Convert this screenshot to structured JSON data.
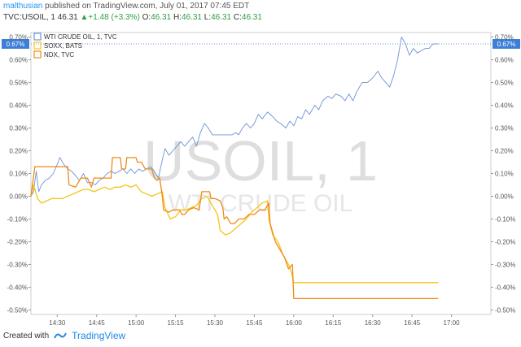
{
  "header": {
    "user": "malthusian",
    "published": " published on TradingView.com, July 01, 2017 07:45 EDT",
    "symbol": "TVC:USOIL, 1",
    "last": "46.31",
    "change_arrow": "▲",
    "change": "+1.48 (+3.3%)",
    "open_label": "O:",
    "open": "46.31",
    "high_label": "H:",
    "high": "46.31",
    "low_label": "L:",
    "low": "46.31",
    "close_label": "C:",
    "close": "46.31"
  },
  "footer": {
    "created_with": "Created with",
    "brand": "TradingView"
  },
  "watermark": {
    "symbol": "USOIL, 1",
    "name": "WTI CRUDE OIL"
  },
  "colors": {
    "usoil": "#6b94d6",
    "soxx": "#f5c518",
    "ndx": "#f08a16",
    "price_label_bg": "#3d7fd6"
  },
  "chart_data": {
    "type": "line",
    "xlim": [
      0,
      17.5
    ],
    "ylim": [
      -0.52,
      0.72
    ],
    "x_ticks": [
      {
        "x": 1.0,
        "label": "14:30"
      },
      {
        "x": 2.5,
        "label": "14:45"
      },
      {
        "x": 4.0,
        "label": "15:00"
      },
      {
        "x": 5.5,
        "label": "15:15"
      },
      {
        "x": 7.0,
        "label": "15:30"
      },
      {
        "x": 8.5,
        "label": "15:45"
      },
      {
        "x": 10.0,
        "label": "16:00"
      },
      {
        "x": 11.5,
        "label": "16:15"
      },
      {
        "x": 13.0,
        "label": "16:30"
      },
      {
        "x": 14.5,
        "label": "16:45"
      },
      {
        "x": 16.0,
        "label": "17:00"
      }
    ],
    "y_ticks": [
      0.7,
      0.6,
      0.5,
      0.4,
      0.3,
      0.2,
      0.1,
      0.0,
      -0.1,
      -0.2,
      -0.3,
      -0.4,
      -0.5
    ],
    "y_tick_labels": [
      "0.70%",
      "0.60%",
      "0.50%",
      "0.40%",
      "0.30%",
      "0.20%",
      "0.10%",
      "0.00%",
      "-0.10%",
      "-0.20%",
      "-0.30%",
      "-0.40%",
      "-0.50%"
    ],
    "last_value_label": "0.67%",
    "last_value": 0.67,
    "legend": [
      {
        "name": "WTI CRUDE OIL, 1, TVC",
        "color": "#6b94d6"
      },
      {
        "name": "SOXX, BATS",
        "color": "#f5c518"
      },
      {
        "name": "NDX, TVC",
        "color": "#f08a16"
      }
    ],
    "series": [
      {
        "name": "WTI CRUDE OIL, 1, TVC",
        "color": "#6b94d6",
        "points": [
          [
            0,
            0
          ],
          [
            0.1,
            0.02
          ],
          [
            0.2,
            0.11
          ],
          [
            0.3,
            0.02
          ],
          [
            0.4,
            0.05
          ],
          [
            0.55,
            0.07
          ],
          [
            0.7,
            0.08
          ],
          [
            0.85,
            0.1
          ],
          [
            1.0,
            0.14
          ],
          [
            1.1,
            0.17
          ],
          [
            1.25,
            0.14
          ],
          [
            1.4,
            0.12
          ],
          [
            1.55,
            0.11
          ],
          [
            1.7,
            0.09
          ],
          [
            1.85,
            0.07
          ],
          [
            2.0,
            0.1
          ],
          [
            2.15,
            0.06
          ],
          [
            2.3,
            0.06
          ],
          [
            2.45,
            0.05
          ],
          [
            2.6,
            0.07
          ],
          [
            2.75,
            0.08
          ],
          [
            2.9,
            0.1
          ],
          [
            3.05,
            0.11
          ],
          [
            3.2,
            0.1
          ],
          [
            3.35,
            0.11
          ],
          [
            3.5,
            0.12
          ],
          [
            3.65,
            0.1
          ],
          [
            3.8,
            0.12
          ],
          [
            3.95,
            0.1
          ],
          [
            4.1,
            0.12
          ],
          [
            4.25,
            0.11
          ],
          [
            4.4,
            0.12
          ],
          [
            4.55,
            0.13
          ],
          [
            4.7,
            0.11
          ],
          [
            4.85,
            0.08
          ],
          [
            5.0,
            0.16
          ],
          [
            5.1,
            0.21
          ],
          [
            5.25,
            0.18
          ],
          [
            5.4,
            0.2
          ],
          [
            5.55,
            0.22
          ],
          [
            5.7,
            0.24
          ],
          [
            5.85,
            0.22
          ],
          [
            6.0,
            0.24
          ],
          [
            6.15,
            0.26
          ],
          [
            6.3,
            0.22
          ],
          [
            6.45,
            0.28
          ],
          [
            6.6,
            0.32
          ],
          [
            6.75,
            0.3
          ],
          [
            6.9,
            0.27
          ],
          [
            7.05,
            0.27
          ],
          [
            7.25,
            0.27
          ],
          [
            7.45,
            0.27
          ],
          [
            7.65,
            0.27
          ],
          [
            7.8,
            0.28
          ],
          [
            7.9,
            0.27
          ],
          [
            8.05,
            0.3
          ],
          [
            8.2,
            0.32
          ],
          [
            8.35,
            0.3
          ],
          [
            8.5,
            0.32
          ],
          [
            8.65,
            0.36
          ],
          [
            8.8,
            0.34
          ],
          [
            9.0,
            0.37
          ],
          [
            9.2,
            0.35
          ],
          [
            9.35,
            0.33
          ],
          [
            9.5,
            0.32
          ],
          [
            9.7,
            0.3
          ],
          [
            9.85,
            0.33
          ],
          [
            10.0,
            0.31
          ],
          [
            10.15,
            0.35
          ],
          [
            10.3,
            0.34
          ],
          [
            10.45,
            0.38
          ],
          [
            10.6,
            0.36
          ],
          [
            10.8,
            0.4
          ],
          [
            10.95,
            0.38
          ],
          [
            11.1,
            0.42
          ],
          [
            11.3,
            0.44
          ],
          [
            11.45,
            0.43
          ],
          [
            11.6,
            0.45
          ],
          [
            11.8,
            0.44
          ],
          [
            11.95,
            0.42
          ],
          [
            12.1,
            0.45
          ],
          [
            12.25,
            0.42
          ],
          [
            12.4,
            0.46
          ],
          [
            12.6,
            0.5
          ],
          [
            12.8,
            0.5
          ],
          [
            13.0,
            0.52
          ],
          [
            13.2,
            0.55
          ],
          [
            13.35,
            0.52
          ],
          [
            13.5,
            0.5
          ],
          [
            13.65,
            0.48
          ],
          [
            13.8,
            0.53
          ],
          [
            13.95,
            0.6
          ],
          [
            14.1,
            0.7
          ],
          [
            14.25,
            0.67
          ],
          [
            14.4,
            0.62
          ],
          [
            14.55,
            0.65
          ],
          [
            14.7,
            0.63
          ],
          [
            14.85,
            0.64
          ],
          [
            15.0,
            0.65
          ],
          [
            15.15,
            0.65
          ],
          [
            15.3,
            0.67
          ],
          [
            15.5,
            0.67
          ]
        ]
      },
      {
        "name": "SOXX, BATS",
        "color": "#f5c518",
        "points": [
          [
            0,
            0
          ],
          [
            0.1,
            0.05
          ],
          [
            0.25,
            -0.01
          ],
          [
            0.4,
            -0.03
          ],
          [
            0.6,
            -0.02
          ],
          [
            0.8,
            -0.01
          ],
          [
            1.0,
            -0.01
          ],
          [
            1.2,
            -0.01
          ],
          [
            1.4,
            0.0
          ],
          [
            1.6,
            0.01
          ],
          [
            1.8,
            0.02
          ],
          [
            2.0,
            0.03
          ],
          [
            2.2,
            0.03
          ],
          [
            2.4,
            0.02
          ],
          [
            2.6,
            0.03
          ],
          [
            2.8,
            0.04
          ],
          [
            3.0,
            0.03
          ],
          [
            3.2,
            0.04
          ],
          [
            3.4,
            0.04
          ],
          [
            3.6,
            0.05
          ],
          [
            3.8,
            0.04
          ],
          [
            4.0,
            0.05
          ],
          [
            4.2,
            0.02
          ],
          [
            4.4,
            0.01
          ],
          [
            4.6,
            0.0
          ],
          [
            4.8,
            0.01
          ],
          [
            5.0,
            0.02
          ],
          [
            5.1,
            -0.05
          ],
          [
            5.3,
            -0.1
          ],
          [
            5.5,
            -0.09
          ],
          [
            5.7,
            -0.06
          ],
          [
            5.9,
            -0.06
          ],
          [
            6.1,
            -0.05
          ],
          [
            6.3,
            -0.04
          ],
          [
            6.5,
            -0.01
          ],
          [
            6.7,
            0.0
          ],
          [
            6.9,
            -0.04
          ],
          [
            7.1,
            -0.08
          ],
          [
            7.2,
            -0.15
          ],
          [
            7.4,
            -0.17
          ],
          [
            7.6,
            -0.16
          ],
          [
            7.8,
            -0.14
          ],
          [
            8.0,
            -0.12
          ],
          [
            8.2,
            -0.1
          ],
          [
            8.4,
            -0.07
          ],
          [
            8.6,
            -0.05
          ],
          [
            8.8,
            -0.03
          ],
          [
            9.0,
            -0.02
          ],
          [
            9.05,
            -0.1
          ],
          [
            9.2,
            -0.17
          ],
          [
            9.4,
            -0.2
          ],
          [
            9.6,
            -0.26
          ],
          [
            9.8,
            -0.3
          ],
          [
            9.9,
            -0.33
          ],
          [
            10.0,
            -0.38
          ],
          [
            10.5,
            -0.38
          ],
          [
            11.5,
            -0.38
          ],
          [
            12.5,
            -0.38
          ],
          [
            13.5,
            -0.38
          ],
          [
            14.5,
            -0.38
          ],
          [
            15.5,
            -0.38
          ]
        ]
      },
      {
        "name": "NDX, TVC",
        "color": "#f08a16",
        "points": [
          [
            0,
            0
          ],
          [
            0.15,
            0.13
          ],
          [
            1.4,
            0.13
          ],
          [
            1.45,
            0.05
          ],
          [
            1.7,
            0.04
          ],
          [
            1.9,
            0.08
          ],
          [
            2.15,
            0.08
          ],
          [
            2.3,
            0.04
          ],
          [
            2.4,
            0.08
          ],
          [
            2.8,
            0.08
          ],
          [
            3.05,
            0.08
          ],
          [
            3.1,
            0.17
          ],
          [
            3.4,
            0.17
          ],
          [
            3.45,
            0.12
          ],
          [
            3.6,
            0.12
          ],
          [
            3.65,
            0.17
          ],
          [
            4.0,
            0.17
          ],
          [
            4.05,
            0.15
          ],
          [
            4.2,
            0.15
          ],
          [
            4.25,
            0.14
          ],
          [
            4.35,
            0.12
          ],
          [
            4.6,
            0.12
          ],
          [
            4.7,
            0.08
          ],
          [
            4.8,
            0.07
          ],
          [
            4.9,
            0.08
          ],
          [
            5.0,
            0.0
          ],
          [
            5.05,
            -0.06
          ],
          [
            5.25,
            -0.07
          ],
          [
            5.4,
            -0.06
          ],
          [
            5.65,
            -0.06
          ],
          [
            5.75,
            -0.08
          ],
          [
            5.85,
            -0.08
          ],
          [
            6.0,
            -0.06
          ],
          [
            6.2,
            -0.05
          ],
          [
            6.4,
            -0.06
          ],
          [
            6.5,
            0.02
          ],
          [
            6.8,
            0.02
          ],
          [
            6.85,
            -0.01
          ],
          [
            7.0,
            -0.01
          ],
          [
            7.2,
            -0.02
          ],
          [
            7.3,
            -0.05
          ],
          [
            7.35,
            -0.1
          ],
          [
            7.45,
            -0.09
          ],
          [
            7.6,
            -0.12
          ],
          [
            7.75,
            -0.12
          ],
          [
            7.9,
            -0.1
          ],
          [
            8.1,
            -0.1
          ],
          [
            8.3,
            -0.08
          ],
          [
            8.5,
            -0.08
          ],
          [
            8.7,
            -0.06
          ],
          [
            8.9,
            -0.06
          ],
          [
            9.05,
            -0.03
          ],
          [
            9.1,
            -0.12
          ],
          [
            9.3,
            -0.2
          ],
          [
            9.5,
            -0.24
          ],
          [
            9.65,
            -0.27
          ],
          [
            9.8,
            -0.32
          ],
          [
            9.95,
            -0.3
          ],
          [
            10.0,
            -0.45
          ],
          [
            10.5,
            -0.45
          ],
          [
            11.5,
            -0.45
          ],
          [
            12.5,
            -0.45
          ],
          [
            13.5,
            -0.45
          ],
          [
            14.5,
            -0.45
          ],
          [
            15.5,
            -0.45
          ]
        ]
      }
    ]
  }
}
